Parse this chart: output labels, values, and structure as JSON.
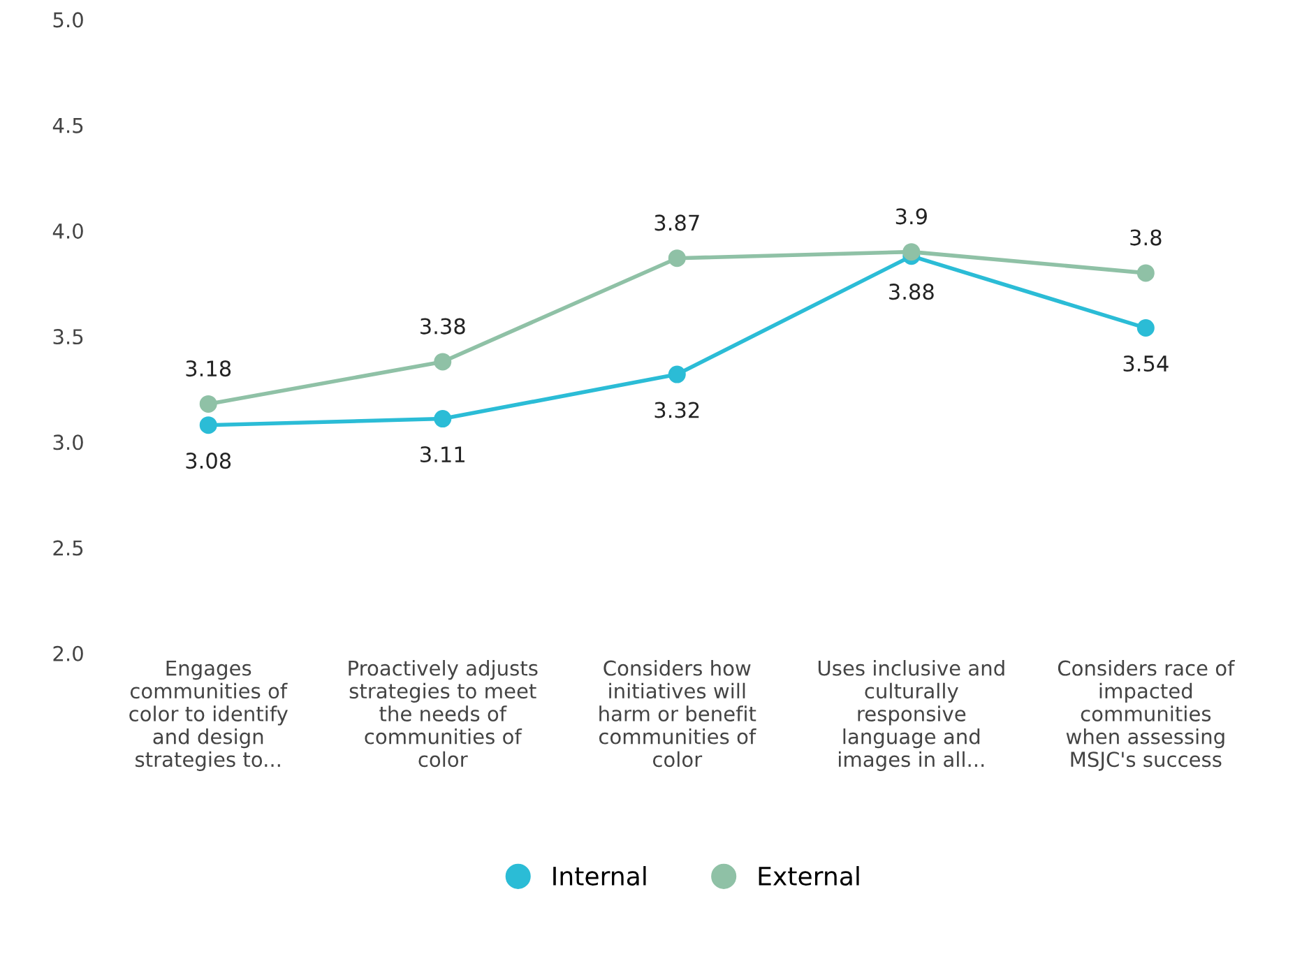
{
  "chart_data": {
    "type": "line",
    "categories": [
      "Engages\ncommunities of\ncolor to identify\nand design\nstrategies to...",
      "Proactively adjusts\nstrategies to meet\nthe needs of\ncommunities of\ncolor",
      "Considers how\ninitiatives will\nharm or benefit\ncommunities of\ncolor",
      "Uses inclusive and\nculturally\nresponsive\nlanguage and\nimages in all...",
      "Considers race of\nimpacted\ncommunities\nwhen assessing\nMSJC's success"
    ],
    "series": [
      {
        "name": "Internal",
        "color": "#2bbcd6",
        "values": [
          3.08,
          3.11,
          3.32,
          3.88,
          3.54
        ]
      },
      {
        "name": "External",
        "color": "#8fc1a6",
        "values": [
          3.18,
          3.38,
          3.87,
          3.9,
          3.8
        ]
      }
    ],
    "ylim": [
      2.0,
      5.0
    ],
    "yticks": [
      {
        "value": 2.0,
        "label": "2.0"
      },
      {
        "value": 2.5,
        "label": "2.5"
      },
      {
        "value": 3.0,
        "label": "3.0"
      },
      {
        "value": 3.5,
        "label": "3.5"
      },
      {
        "value": 4.0,
        "label": "4.0"
      },
      {
        "value": 4.5,
        "label": "4.5"
      },
      {
        "value": 5.0,
        "label": "5.0"
      }
    ],
    "data_labels": true,
    "grid": false,
    "legend": "bottom",
    "marker": "circle"
  }
}
